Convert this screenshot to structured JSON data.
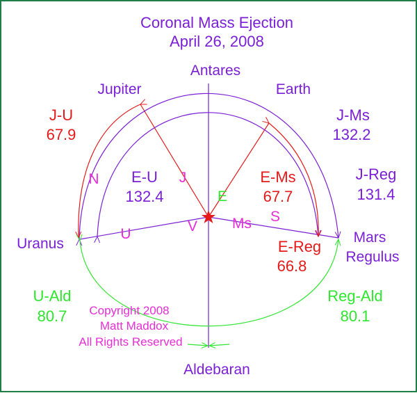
{
  "title": "Coronal Mass Ejection",
  "date": "April 26, 2008",
  "colors": {
    "frame": "#1f7d47",
    "purple": "#7a1fd6",
    "red": "#e41a1a",
    "green": "#2ee62e",
    "magenta": "#e62ed6"
  },
  "points": {
    "antares": "Antares",
    "jupiter": "Jupiter",
    "earth": "Earth",
    "uranus": "Uranus",
    "mars": "Mars",
    "regulus": "Regulus",
    "aldebaran": "Aldebaran"
  },
  "line_letters": {
    "j": "J",
    "e": "E",
    "u": "U",
    "v": "V",
    "ms": "Ms",
    "s": "S",
    "n": "N"
  },
  "angles": {
    "j_u": {
      "label": "J-U",
      "value": "67.9"
    },
    "j_ms": {
      "label": "J-Ms",
      "value": "132.2"
    },
    "e_u": {
      "label": "E-U",
      "value": "132.4"
    },
    "e_ms": {
      "label": "E-Ms",
      "value": "67.7"
    },
    "j_reg": {
      "label": "J-Reg",
      "value": "131.4"
    },
    "e_reg": {
      "label": "E-Reg",
      "value": "66.8"
    },
    "u_ald": {
      "label": "U-Ald",
      "value": "80.7"
    },
    "reg_ald": {
      "label": "Reg-Ald",
      "value": "80.1"
    }
  },
  "copyright": {
    "line1": "Copyright 2008",
    "line2": "Matt Maddox",
    "line3": "All Rights Reserved"
  },
  "center_marker": "star-icon"
}
